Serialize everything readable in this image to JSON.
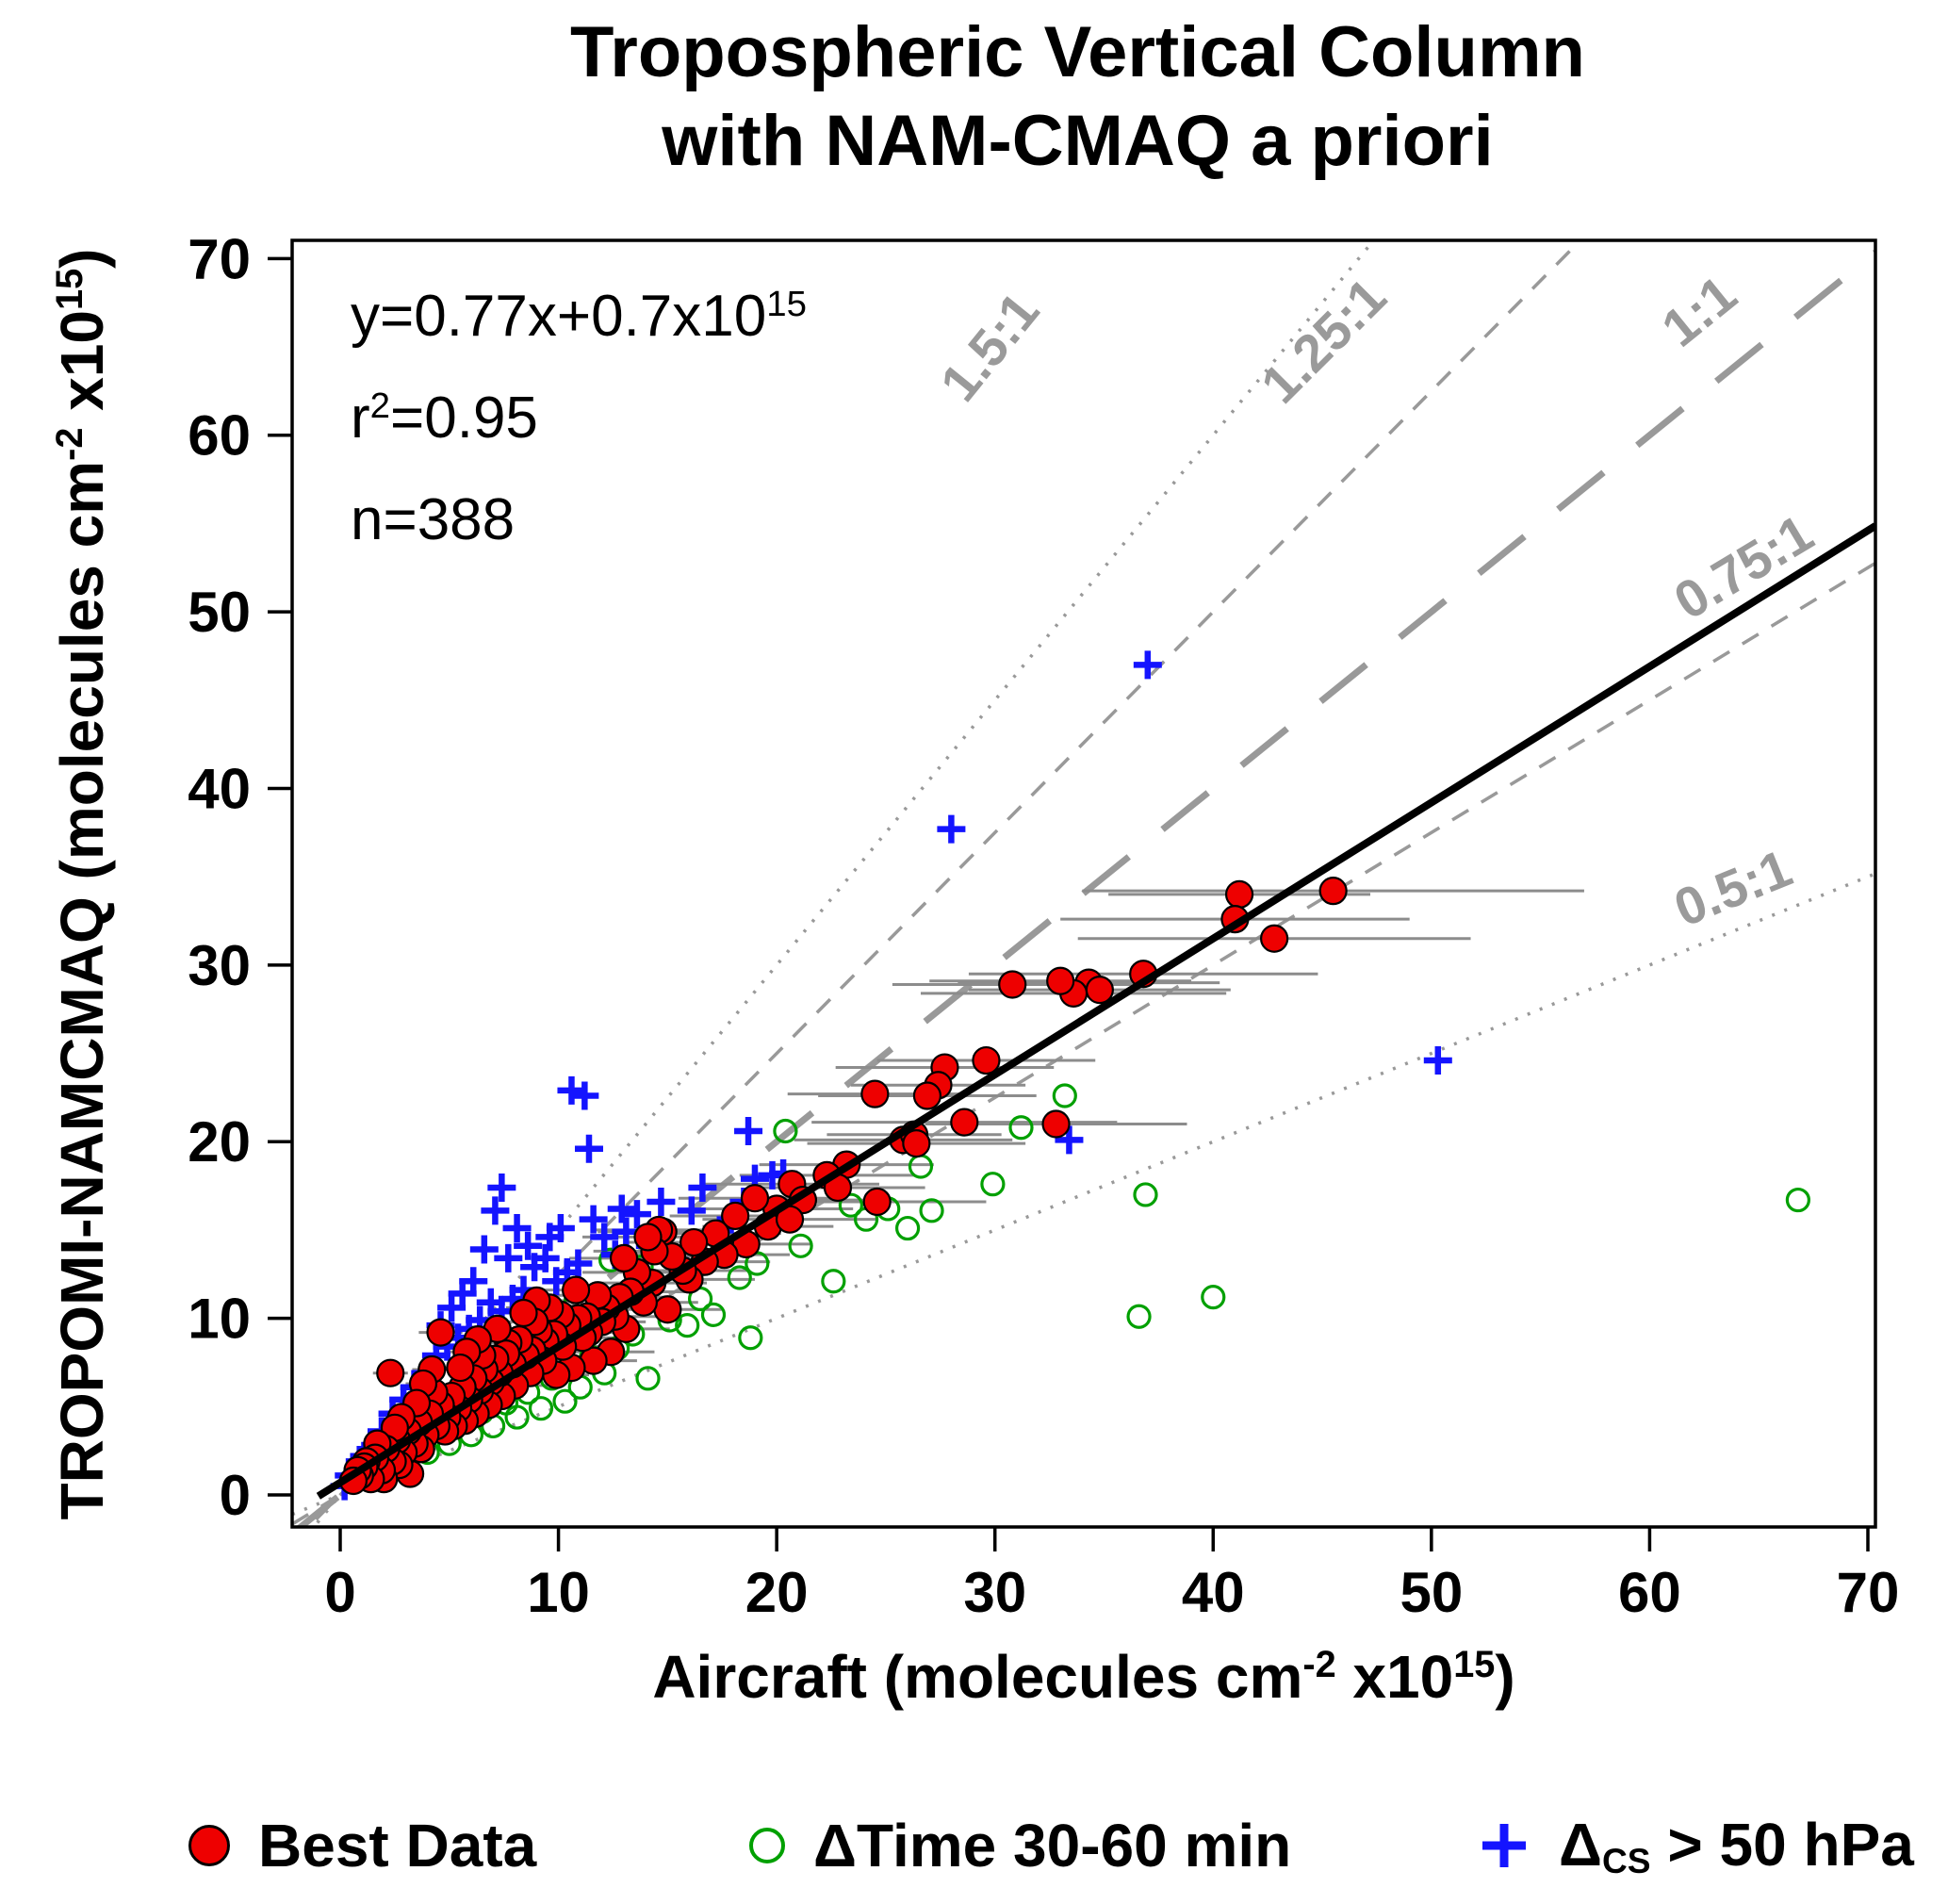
{
  "title": {
    "line1": "Tropospheric Vertical Column",
    "line2": "with NAM-CMAQ a priori"
  },
  "stats": {
    "fit_base": "y=0.77x+0.7x10",
    "fit_exp": "15",
    "r_base": "r",
    "r_exp": "2",
    "r_rest": "=0.95",
    "n_label": "n=388"
  },
  "x_axis": {
    "base": "Aircraft (molecules cm",
    "exp1": "-2",
    "mid": " x10",
    "exp2": "15",
    "end": ")",
    "ticks": [
      0,
      10,
      20,
      30,
      40,
      50,
      60,
      70
    ]
  },
  "y_axis": {
    "base": "TROPOMI-NAMCMAQ (molecules cm",
    "exp1": "-2",
    "mid": " x10",
    "exp2": "15",
    "end": ")",
    "ticks": [
      0,
      10,
      20,
      30,
      40,
      50,
      60,
      70
    ]
  },
  "legend": {
    "item1": "Best Data",
    "item2": "ΔTime 30-60 min",
    "item3_base": "Δ",
    "item3_sub": "CS",
    "item3_rest": " > 50 hPa"
  },
  "colors": {
    "best": "#EE0000",
    "dtime": "#00A000",
    "dcs": "#1414FF",
    "fit": "#000000",
    "ref": "#999999",
    "ref_label": "#9A9A9A",
    "error_bar": "#8C8C8C"
  },
  "chart_data": {
    "type": "scatter",
    "title": "Tropospheric Vertical Column with NAM-CMAQ a priori",
    "xlabel": "Aircraft (molecules cm^-2 x10^15)",
    "ylabel": "TROPOMI-NAMCMAQ (molecules cm^-2 x10^15)",
    "xlim": [
      0,
      70
    ],
    "ylim": [
      0,
      70
    ],
    "grid": false,
    "fit": {
      "slope": 0.77,
      "intercept": 0.7,
      "equation": "y=0.77x+0.7x10^15",
      "r2": 0.95,
      "n": 388
    },
    "ref_lines": [
      {
        "label": "1.5:1",
        "slope": 1.5,
        "style": "dotted"
      },
      {
        "label": "1.25:1",
        "slope": 1.25,
        "style": "dashed"
      },
      {
        "label": "1:1",
        "slope": 1.0,
        "style": "longdash"
      },
      {
        "label": "0.75:1",
        "slope": 0.75,
        "style": "dashed"
      },
      {
        "label": "0.5:1",
        "slope": 0.5,
        "style": "dotted"
      }
    ],
    "series": [
      {
        "name": "Best Data",
        "marker": "filled_circle",
        "color": "#EE0000",
        "note": "points are [x, y, x_error]",
        "points": [
          [
            45.5,
            34.2,
            11.5
          ],
          [
            41.2,
            34.0,
            6.0
          ],
          [
            41.0,
            32.6,
            8.0
          ],
          [
            42.8,
            31.5,
            9.0
          ],
          [
            36.8,
            29.5,
            8.0
          ],
          [
            34.3,
            29.0,
            6.0
          ],
          [
            33.6,
            28.4,
            7.0
          ],
          [
            33.0,
            29.1,
            6.0
          ],
          [
            30.8,
            28.9,
            5.5
          ],
          [
            34.8,
            28.6,
            6.0
          ],
          [
            32.8,
            21.0,
            6.0
          ],
          [
            29.6,
            24.6,
            5.0
          ],
          [
            27.7,
            24.2,
            5.0
          ],
          [
            27.4,
            23.2,
            4.0
          ],
          [
            26.9,
            22.6,
            5.0
          ],
          [
            28.6,
            21.1,
            7.0
          ],
          [
            24.5,
            22.7,
            4.0
          ],
          [
            25.8,
            20.1,
            5.0
          ],
          [
            26.3,
            20.4,
            4.0
          ],
          [
            26.4,
            19.9,
            5.0
          ],
          [
            23.2,
            18.7,
            4.0
          ],
          [
            22.3,
            18.1,
            4.0
          ],
          [
            24.6,
            16.6,
            5.0
          ],
          [
            22.8,
            17.4,
            4.0
          ],
          [
            20.7,
            17.6,
            4.0
          ],
          [
            21.2,
            16.7,
            3.0
          ],
          [
            20.0,
            16.2,
            3.5
          ],
          [
            19.6,
            15.2,
            3.0
          ],
          [
            20.6,
            15.6,
            4.0
          ],
          [
            19.0,
            16.8,
            3.5
          ],
          [
            18.6,
            14.2,
            3.0
          ],
          [
            18.1,
            15.8,
            3.0
          ],
          [
            17.6,
            13.6,
            3.0
          ],
          [
            17.2,
            14.8,
            3.0
          ],
          [
            16.7,
            13.2,
            3.0
          ],
          [
            16.2,
            14.3,
            3.0
          ],
          [
            16.0,
            12.2,
            3.0
          ],
          [
            15.7,
            12.7,
            3.0
          ],
          [
            15.2,
            13.5,
            3.0
          ],
          [
            15.0,
            10.5,
            2.5
          ],
          [
            14.8,
            14.9,
            3.0
          ],
          [
            14.6,
            15.0,
            3.0
          ],
          [
            14.4,
            13.8,
            2.8
          ],
          [
            14.3,
            12.0,
            2.5
          ],
          [
            14.1,
            14.6,
            3.0
          ],
          [
            13.9,
            10.9,
            2.5
          ],
          [
            13.6,
            12.6,
            2.5
          ],
          [
            13.3,
            11.5,
            2.5
          ],
          [
            13.1,
            9.4,
            2.0
          ],
          [
            13.0,
            13.4,
            2.5
          ],
          [
            12.8,
            11.2,
            2.5
          ],
          [
            12.6,
            10.1,
            2.0
          ],
          [
            12.4,
            8.1,
            2.0
          ],
          [
            12.2,
            10.6,
            2.0
          ],
          [
            12.0,
            9.8,
            2.0
          ],
          [
            11.8,
            11.3,
            2.0
          ],
          [
            11.6,
            7.6,
            2.0
          ],
          [
            11.4,
            9.2,
            2.0
          ],
          [
            11.3,
            10.1,
            2.0
          ],
          [
            11.1,
            8.9,
            2.0
          ],
          [
            10.9,
            10.0,
            2.0
          ],
          [
            10.8,
            11.6,
            2.0
          ],
          [
            10.6,
            7.2,
            1.5
          ],
          [
            10.4,
            9.6,
            2.0
          ],
          [
            10.2,
            8.4,
            2.0
          ],
          [
            10.1,
            10.2,
            2.0
          ],
          [
            9.9,
            6.8,
            1.5
          ],
          [
            9.8,
            9.1,
            1.5
          ],
          [
            9.6,
            10.6,
            2.0
          ],
          [
            9.4,
            8.7,
            1.5
          ],
          [
            9.3,
            7.6,
            1.5
          ],
          [
            9.1,
            9.3,
            1.5
          ],
          [
            9.0,
            11.0,
            1.6
          ],
          [
            8.9,
            9.8,
            1.5
          ],
          [
            8.8,
            8.2,
            1.5
          ],
          [
            8.7,
            6.9,
            1.5
          ],
          [
            8.5,
            7.9,
            1.5
          ],
          [
            8.4,
            10.3,
            1.5
          ],
          [
            8.2,
            8.8,
            1.5
          ],
          [
            8.0,
            6.2,
            1.5
          ],
          [
            7.9,
            7.4,
            1.5
          ],
          [
            7.7,
            8.6,
            1.5
          ],
          [
            7.6,
            8.0,
            1.5
          ],
          [
            7.4,
            5.6,
            1.0
          ],
          [
            7.3,
            6.9,
            1.0
          ],
          [
            7.2,
            9.4,
            1.3
          ],
          [
            7.1,
            7.7,
            1.0
          ],
          [
            6.9,
            6.4,
            1.0
          ],
          [
            6.8,
            5.1,
            1.0
          ],
          [
            6.6,
            7.1,
            1.0
          ],
          [
            6.5,
            7.9,
            1.0
          ],
          [
            6.4,
            5.9,
            1.0
          ],
          [
            6.3,
            8.8,
            1.2
          ],
          [
            6.2,
            4.6,
            1.0
          ],
          [
            6.1,
            6.6,
            1.0
          ],
          [
            5.9,
            5.4,
            1.0
          ],
          [
            5.8,
            8.1,
            1.0
          ],
          [
            5.7,
            4.2,
            1.0
          ],
          [
            5.6,
            6.1,
            1.0
          ],
          [
            5.5,
            7.2,
            1.0
          ],
          [
            5.4,
            4.9,
            1.0
          ],
          [
            5.2,
            3.9,
            1.0
          ],
          [
            5.1,
            5.6,
            1.0
          ],
          [
            4.9,
            4.4,
            0.8
          ],
          [
            4.8,
            3.6,
            0.8
          ],
          [
            4.6,
            5.1,
            0.8
          ],
          [
            4.6,
            9.2,
            1.0
          ],
          [
            4.4,
            3.9,
            0.8
          ],
          [
            4.3,
            5.8,
            0.8
          ],
          [
            4.2,
            7.1,
            0.9
          ],
          [
            4.1,
            4.6,
            0.8
          ],
          [
            3.9,
            3.4,
            0.8
          ],
          [
            3.8,
            6.3,
            0.8
          ],
          [
            3.7,
            2.6,
            0.7
          ],
          [
            3.6,
            4.1,
            0.7
          ],
          [
            3.5,
            5.2,
            0.8
          ],
          [
            3.4,
            2.9,
            0.7
          ],
          [
            3.2,
            1.2,
            0.6
          ],
          [
            3.1,
            3.6,
            0.7
          ],
          [
            2.9,
            2.4,
            0.6
          ],
          [
            2.8,
            4.4,
            0.6
          ],
          [
            2.7,
            1.7,
            0.6
          ],
          [
            2.6,
            3.1,
            0.6
          ],
          [
            2.5,
            3.8,
            0.5
          ],
          [
            2.4,
            1.9,
            0.5
          ],
          [
            2.3,
            6.9,
            0.8
          ],
          [
            2.1,
            2.6,
            0.5
          ],
          [
            2.0,
            0.9,
            0.4
          ],
          [
            1.9,
            1.4,
            0.5
          ],
          [
            1.7,
            2.9,
            0.4
          ],
          [
            1.6,
            2.1,
            0.4
          ],
          [
            1.4,
            0.9,
            0.4
          ],
          [
            1.2,
            1.9,
            0.3
          ],
          [
            1.1,
            1.6,
            0.3
          ],
          [
            0.9,
            1.1,
            0.3
          ],
          [
            0.8,
            1.4,
            0.3
          ],
          [
            0.6,
            0.8,
            0.3
          ]
        ]
      },
      {
        "name": "ΔTime 30-60 min",
        "marker": "open_circle",
        "color": "#00A000",
        "points": [
          [
            66.8,
            16.7
          ],
          [
            40.0,
            11.2
          ],
          [
            36.9,
            17.0
          ],
          [
            36.6,
            10.1
          ],
          [
            33.2,
            22.6
          ],
          [
            31.2,
            20.8
          ],
          [
            29.9,
            17.6
          ],
          [
            27.1,
            16.1
          ],
          [
            26.6,
            18.6
          ],
          [
            26.0,
            15.1
          ],
          [
            25.1,
            16.2
          ],
          [
            24.1,
            15.6
          ],
          [
            23.4,
            16.4
          ],
          [
            22.6,
            12.1
          ],
          [
            21.1,
            14.1
          ],
          [
            20.4,
            20.6
          ],
          [
            19.1,
            13.1
          ],
          [
            18.8,
            8.9
          ],
          [
            18.3,
            12.3
          ],
          [
            17.1,
            10.2
          ],
          [
            16.5,
            11.1
          ],
          [
            15.9,
            9.6
          ],
          [
            15.1,
            9.9
          ],
          [
            14.1,
            6.6
          ],
          [
            13.8,
            12.9
          ],
          [
            13.4,
            9.1
          ],
          [
            12.7,
            8.3
          ],
          [
            12.4,
            13.3
          ],
          [
            12.1,
            6.9
          ],
          [
            11.5,
            7.8
          ],
          [
            11.0,
            6.1
          ],
          [
            10.8,
            11.0
          ],
          [
            10.3,
            5.3
          ],
          [
            9.7,
            6.6
          ],
          [
            9.2,
            4.9
          ],
          [
            8.6,
            5.8
          ],
          [
            8.1,
            4.4
          ],
          [
            7.6,
            5.2
          ],
          [
            7.0,
            3.9
          ],
          [
            6.5,
            4.7
          ],
          [
            6.0,
            3.4
          ],
          [
            5.5,
            4.2
          ],
          [
            5.0,
            2.9
          ],
          [
            4.5,
            3.7
          ],
          [
            4.0,
            2.4
          ],
          [
            3.5,
            3.2
          ],
          [
            3.0,
            1.9
          ],
          [
            2.5,
            2.7
          ],
          [
            2.0,
            1.5
          ]
        ]
      },
      {
        "name": "ΔCS > 50 hPa",
        "marker": "plus",
        "color": "#1414FF",
        "points": [
          [
            37.0,
            47.0
          ],
          [
            28.0,
            37.7
          ],
          [
            50.3,
            24.6
          ],
          [
            33.4,
            20.1
          ],
          [
            10.6,
            22.9
          ],
          [
            11.2,
            22.6
          ],
          [
            11.4,
            19.6
          ],
          [
            18.7,
            20.6
          ],
          [
            19.8,
            18.1
          ],
          [
            20.3,
            18.2
          ],
          [
            19.0,
            17.9
          ],
          [
            16.6,
            17.4
          ],
          [
            14.7,
            16.6
          ],
          [
            16.1,
            16.1
          ],
          [
            17.9,
            15.6
          ],
          [
            18.5,
            16.6
          ],
          [
            13.6,
            15.9
          ],
          [
            12.9,
            16.2
          ],
          [
            7.4,
            17.4
          ],
          [
            7.1,
            16.1
          ],
          [
            8.1,
            15.1
          ],
          [
            9.6,
            14.6
          ],
          [
            10.1,
            15.1
          ],
          [
            11.6,
            15.6
          ],
          [
            12.1,
            14.6
          ],
          [
            12.6,
            13.6
          ],
          [
            13.1,
            14.9
          ],
          [
            14.2,
            14.1
          ],
          [
            15.3,
            13.3
          ],
          [
            10.9,
            13.1
          ],
          [
            10.4,
            12.6
          ],
          [
            9.9,
            12.1
          ],
          [
            9.4,
            13.4
          ],
          [
            8.9,
            12.9
          ],
          [
            8.6,
            14.1
          ],
          [
            8.4,
            11.6
          ],
          [
            7.9,
            11.1
          ],
          [
            7.7,
            13.4
          ],
          [
            7.4,
            10.4
          ],
          [
            6.9,
            10.9
          ],
          [
            6.6,
            13.9
          ],
          [
            6.4,
            9.9
          ],
          [
            6.1,
            12.1
          ],
          [
            5.9,
            9.4
          ],
          [
            5.6,
            11.4
          ],
          [
            5.4,
            8.9
          ],
          [
            5.1,
            10.6
          ],
          [
            4.9,
            8.4
          ],
          [
            4.6,
            9.6
          ],
          [
            4.4,
            7.9
          ],
          [
            3.9,
            6.9
          ],
          [
            3.4,
            6.1
          ],
          [
            3.1,
            4.4
          ],
          [
            2.9,
            5.4
          ],
          [
            2.4,
            4.6
          ],
          [
            2.2,
            3.1
          ],
          [
            1.9,
            3.6
          ],
          [
            1.4,
            2.6
          ],
          [
            1.1,
            2.2
          ],
          [
            0.9,
            1.9
          ],
          [
            0.4,
            1.1
          ],
          [
            0.2,
            0.5
          ]
        ]
      }
    ]
  }
}
